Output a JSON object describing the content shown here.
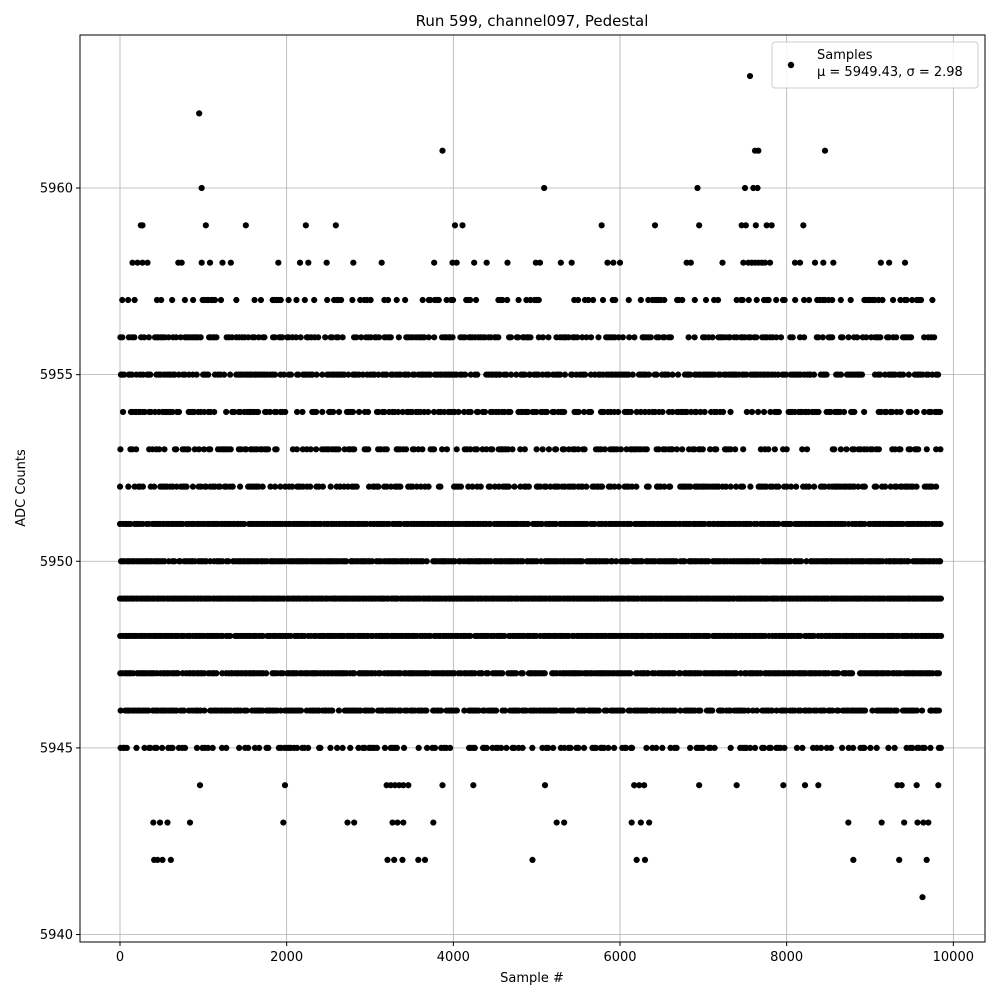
{
  "chart_data": {
    "type": "scatter",
    "title": "Run 599, channel097, Pedestal",
    "xlabel": "Sample #",
    "ylabel": "ADC Counts",
    "xlim": [
      -480,
      10380
    ],
    "ylim": [
      5939.8,
      5964.1
    ],
    "xticks": [
      0,
      2000,
      4000,
      6000,
      8000,
      10000
    ],
    "yticks": [
      5940,
      5945,
      5950,
      5955,
      5960
    ],
    "grid": true,
    "legend_position": "top-right",
    "legend": {
      "label": "Samples",
      "stats": "μ = 5949.43, σ = 2.98"
    },
    "series": [
      {
        "name": "Samples",
        "color": "#000000",
        "points": [
          [
            950,
            5962
          ],
          [
            7560,
            5963
          ],
          [
            3870,
            5961
          ],
          [
            7620,
            5961
          ],
          [
            7660,
            5961
          ],
          [
            8460,
            5961
          ],
          [
            980,
            5960
          ],
          [
            5090,
            5960
          ],
          [
            6930,
            5960
          ],
          [
            7500,
            5960
          ],
          [
            7600,
            5960
          ],
          [
            7650,
            5960
          ],
          [
            250,
            5959
          ],
          [
            270,
            5959
          ],
          [
            1030,
            5959
          ],
          [
            1510,
            5959
          ],
          [
            2230,
            5959
          ],
          [
            2590,
            5959
          ],
          [
            4020,
            5959
          ],
          [
            4110,
            5959
          ],
          [
            5780,
            5959
          ],
          [
            6420,
            5959
          ],
          [
            6950,
            5959
          ],
          [
            7460,
            5959
          ],
          [
            7510,
            5959
          ],
          [
            7630,
            5959
          ],
          [
            7760,
            5959
          ],
          [
            7820,
            5959
          ],
          [
            8200,
            5959
          ],
          [
            150,
            5958
          ],
          [
            210,
            5958
          ],
          [
            270,
            5958
          ],
          [
            330,
            5958
          ],
          [
            700,
            5958
          ],
          [
            740,
            5958
          ],
          [
            980,
            5958
          ],
          [
            1080,
            5958
          ],
          [
            1230,
            5958
          ],
          [
            1330,
            5958
          ],
          [
            1900,
            5958
          ],
          [
            2160,
            5958
          ],
          [
            2260,
            5958
          ],
          [
            2480,
            5958
          ],
          [
            2800,
            5958
          ],
          [
            3140,
            5958
          ],
          [
            3770,
            5958
          ],
          [
            3990,
            5958
          ],
          [
            4040,
            5958
          ],
          [
            4250,
            5958
          ],
          [
            4400,
            5958
          ],
          [
            4650,
            5958
          ],
          [
            4990,
            5958
          ],
          [
            5040,
            5958
          ],
          [
            5290,
            5958
          ],
          [
            5420,
            5958
          ],
          [
            5850,
            5958
          ],
          [
            5920,
            5958
          ],
          [
            6000,
            5958
          ],
          [
            6800,
            5958
          ],
          [
            6850,
            5958
          ],
          [
            7230,
            5958
          ],
          [
            7480,
            5958
          ],
          [
            7540,
            5958
          ],
          [
            7580,
            5958
          ],
          [
            7620,
            5958
          ],
          [
            7660,
            5958
          ],
          [
            7700,
            5958
          ],
          [
            7740,
            5958
          ],
          [
            7800,
            5958
          ],
          [
            8100,
            5958
          ],
          [
            8160,
            5958
          ],
          [
            8340,
            5958
          ],
          [
            8440,
            5958
          ],
          [
            8560,
            5958
          ],
          [
            9130,
            5958
          ],
          [
            9230,
            5958
          ],
          [
            9420,
            5958
          ],
          [
            960,
            5944
          ],
          [
            1980,
            5944
          ],
          [
            4240,
            5944
          ],
          [
            5100,
            5944
          ],
          [
            6950,
            5944
          ],
          [
            7400,
            5944
          ],
          [
            7960,
            5944
          ],
          [
            8220,
            5944
          ],
          [
            8380,
            5944
          ],
          [
            3200,
            5944
          ],
          [
            3250,
            5944
          ],
          [
            3300,
            5944
          ],
          [
            3350,
            5944
          ],
          [
            3400,
            5944
          ],
          [
            3460,
            5944
          ],
          [
            3870,
            5944
          ],
          [
            6170,
            5944
          ],
          [
            6230,
            5944
          ],
          [
            6290,
            5944
          ],
          [
            9330,
            5944
          ],
          [
            9380,
            5944
          ],
          [
            9560,
            5944
          ],
          [
            9820,
            5944
          ],
          [
            400,
            5943
          ],
          [
            480,
            5943
          ],
          [
            570,
            5943
          ],
          [
            840,
            5943
          ],
          [
            1960,
            5943
          ],
          [
            2730,
            5943
          ],
          [
            2810,
            5943
          ],
          [
            3270,
            5943
          ],
          [
            3330,
            5943
          ],
          [
            3400,
            5943
          ],
          [
            3760,
            5943
          ],
          [
            5240,
            5943
          ],
          [
            5330,
            5943
          ],
          [
            6140,
            5943
          ],
          [
            6250,
            5943
          ],
          [
            6350,
            5943
          ],
          [
            8740,
            5943
          ],
          [
            9140,
            5943
          ],
          [
            9410,
            5943
          ],
          [
            9570,
            5943
          ],
          [
            9640,
            5943
          ],
          [
            9700,
            5943
          ],
          [
            410,
            5942
          ],
          [
            450,
            5942
          ],
          [
            510,
            5942
          ],
          [
            610,
            5942
          ],
          [
            3210,
            5942
          ],
          [
            3290,
            5942
          ],
          [
            3390,
            5942
          ],
          [
            3580,
            5942
          ],
          [
            3660,
            5942
          ],
          [
            4950,
            5942
          ],
          [
            6200,
            5942
          ],
          [
            6300,
            5942
          ],
          [
            8800,
            5942
          ],
          [
            9350,
            5942
          ],
          [
            9680,
            5942
          ],
          [
            9630,
            5941
          ]
        ]
      }
    ]
  }
}
